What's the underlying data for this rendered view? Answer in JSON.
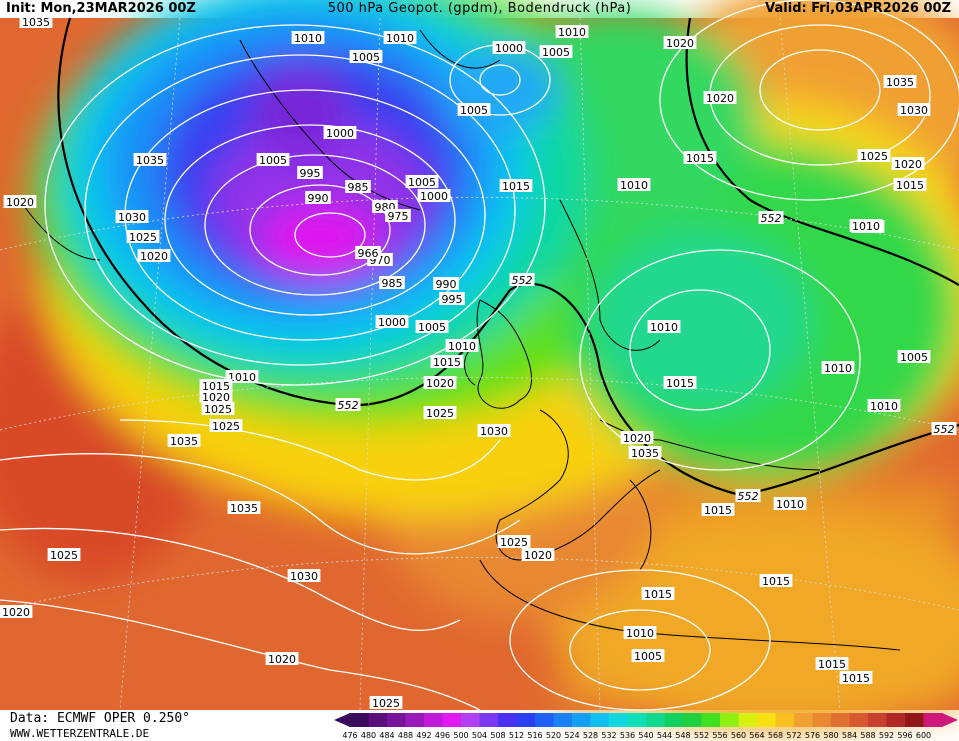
{
  "header": {
    "init": "Init: Mon,23MAR2026 00Z",
    "title": "500 hPa Geopot. (gpdm), Bodendruck (hPa)",
    "valid": "Valid: Fri,03APR2026 00Z"
  },
  "footer": {
    "data_source": "Data: ECMWF OPER 0.250°",
    "website": "WWW.WETTERZENTRALE.DE"
  },
  "legend": {
    "ticks": [
      "476",
      "480",
      "484",
      "488",
      "492",
      "496",
      "500",
      "504",
      "508",
      "512",
      "516",
      "520",
      "524",
      "528",
      "532",
      "536",
      "540",
      "544",
      "548",
      "552",
      "556",
      "560",
      "564",
      "568",
      "572",
      "576",
      "580",
      "584",
      "588",
      "592",
      "596",
      "600"
    ],
    "colors": [
      "#3a0a5c",
      "#5a0f7a",
      "#78149a",
      "#9a18b8",
      "#c01ad8",
      "#e01af0",
      "#b040f0",
      "#7a38f0",
      "#4a30f0",
      "#2a40f0",
      "#2060f8",
      "#1a80f8",
      "#14a0f8",
      "#10c0f0",
      "#10d8e0",
      "#10e0b8",
      "#10d890",
      "#10d060",
      "#20d040",
      "#40e020",
      "#90f010",
      "#d8f010",
      "#f8e010",
      "#f8c020",
      "#f0a030",
      "#e88830",
      "#e07030",
      "#d85830",
      "#c84030",
      "#b02828",
      "#901818",
      "#d01878"
    ]
  },
  "map_labels": {
    "isobars": [
      "1035",
      "1010",
      "1010",
      "1010",
      "1005",
      "1000",
      "1005",
      "1020",
      "1020",
      "1035",
      "1030",
      "1035",
      "1005",
      "1000",
      "1005",
      "1025",
      "1020",
      "1015",
      "1015",
      "1010",
      "1010",
      "1015",
      "995",
      "985",
      "990",
      "980",
      "975",
      "1005",
      "1000",
      "1020",
      "1030",
      "1025",
      "1020",
      "1010",
      "970",
      "966",
      "985",
      "990",
      "995",
      "1000",
      "1005",
      "1010",
      "1015",
      "1010",
      "1020",
      "1015",
      "1010",
      "1005",
      "1010",
      "1025",
      "1035",
      "1030",
      "1010",
      "1015",
      "1020",
      "1025",
      "1025",
      "1020",
      "1035",
      "1035",
      "1015",
      "1010",
      "1025",
      "1020",
      "1030",
      "1025",
      "1020",
      "1015",
      "1015",
      "1010",
      "1005",
      "1015",
      "1015",
      "1020",
      "1025"
    ],
    "geopotential": [
      "552",
      "552",
      "552",
      "552",
      "552"
    ]
  },
  "map_colors": {
    "coast": "#000000",
    "isobar": "#ffffff",
    "grid": "#d0d0d0"
  }
}
